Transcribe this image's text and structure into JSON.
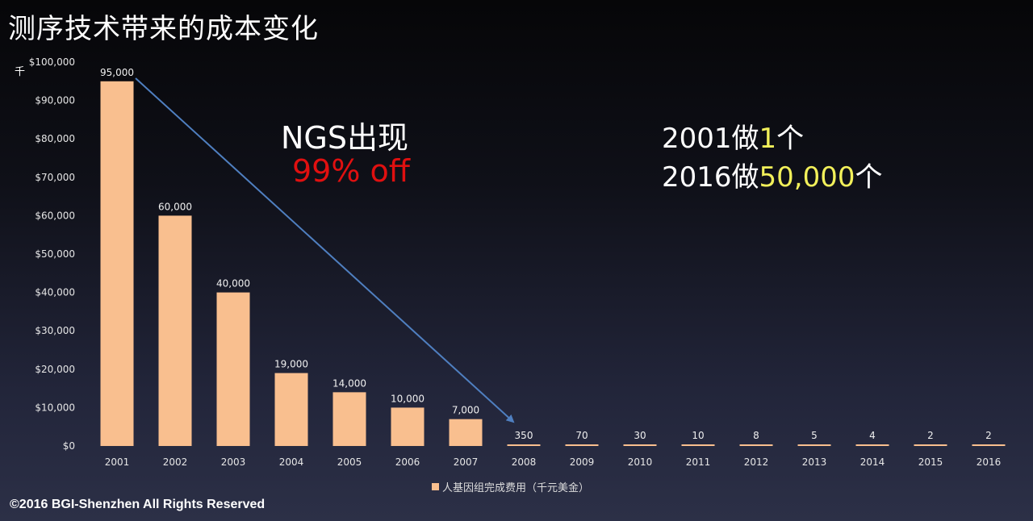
{
  "title": "测序技术带来的成本变化",
  "y_unit_label": "千",
  "annotation_ngs": "NGS出现",
  "annotation_off": "99% off",
  "comparison": {
    "line1_prefix": "2001做",
    "line1_highlight": "1",
    "line1_suffix": "个",
    "line2_prefix": "2016做",
    "line2_highlight": "50,000",
    "line2_suffix": "个"
  },
  "footer": "©2016 BGI-Shenzhen All Rights Reserved",
  "colors": {
    "bar": "#f9bf8f",
    "arrow": "#4f7fc0",
    "off_text": "#e01010",
    "highlight": "#f2f05a"
  },
  "chart_data": {
    "type": "bar",
    "categories": [
      "2001",
      "2002",
      "2003",
      "2004",
      "2005",
      "2006",
      "2007",
      "2008",
      "2009",
      "2010",
      "2011",
      "2012",
      "2013",
      "2014",
      "2015",
      "2016"
    ],
    "series": [
      {
        "name": "人基因组完成费用（千元美金）",
        "values": [
          95000,
          60000,
          40000,
          19000,
          14000,
          10000,
          7000,
          350,
          70,
          30,
          10,
          8,
          5,
          4,
          2,
          2
        ]
      }
    ],
    "data_labels": [
      "95,000",
      "60,000",
      "40,000",
      "19,000",
      "14,000",
      "10,000",
      "7,000",
      "350",
      "70",
      "30",
      "10",
      "8",
      "5",
      "4",
      "2",
      "2"
    ],
    "yticks": [
      "$0",
      "$10,000",
      "$20,000",
      "$30,000",
      "$40,000",
      "$50,000",
      "$60,000",
      "$70,000",
      "$80,000",
      "$90,000",
      "$100,000"
    ],
    "ylim": [
      0,
      100000
    ],
    "legend": "bottom",
    "grid": false
  }
}
